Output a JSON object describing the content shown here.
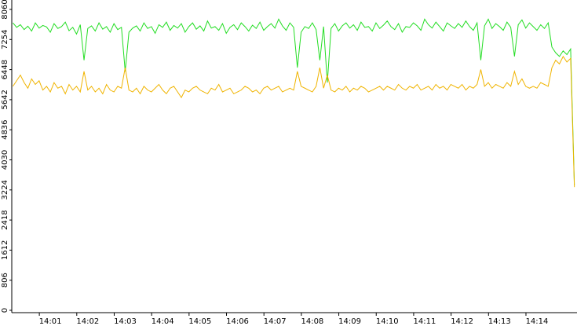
{
  "chart_data": {
    "type": "line",
    "x": [
      840.0,
      840.1,
      840.2,
      840.3,
      840.4,
      840.5,
      840.6,
      840.7,
      840.8,
      840.9,
      841.0,
      841.1,
      841.2,
      841.3,
      841.4,
      841.5,
      841.6,
      841.7,
      841.8,
      841.9,
      842.0,
      842.1,
      842.2,
      842.3,
      842.4,
      842.5,
      842.6,
      842.7,
      842.8,
      842.9,
      843.0,
      843.1,
      843.2,
      843.3,
      843.4,
      843.5,
      843.6,
      843.7,
      843.8,
      843.9,
      844.0,
      844.1,
      844.2,
      844.3,
      844.4,
      844.5,
      844.6,
      844.7,
      844.8,
      844.9,
      845.0,
      845.1,
      845.2,
      845.3,
      845.4,
      845.5,
      845.6,
      845.7,
      845.8,
      845.9,
      846.0,
      846.1,
      846.2,
      846.3,
      846.4,
      846.5,
      846.6,
      846.7,
      846.8,
      846.9,
      847.0,
      847.1,
      847.2,
      847.3,
      847.4,
      847.5,
      847.6,
      847.7,
      847.8,
      847.9,
      848.0,
      848.1,
      848.2,
      848.3,
      848.4,
      848.5,
      848.6,
      848.7,
      848.8,
      848.9,
      849.0,
      849.1,
      849.2,
      849.3,
      849.4,
      849.5,
      849.6,
      849.7,
      849.8,
      849.9,
      850.0,
      850.1,
      850.2,
      850.3,
      850.4,
      850.5,
      850.6,
      850.7,
      850.8,
      850.9,
      851.0,
      851.1,
      851.2,
      851.3,
      851.4,
      851.5,
      851.6,
      851.7,
      851.8,
      851.9,
      852.0,
      852.1,
      852.2,
      852.3,
      852.4,
      852.5,
      852.6,
      852.7,
      852.8,
      852.9,
      853.0,
      853.1,
      853.2,
      853.3,
      853.4,
      853.5,
      853.6,
      853.7,
      853.8,
      853.9,
      854.0,
      854.1,
      854.2,
      854.3,
      854.4,
      854.5,
      854.6,
      854.7,
      854.8,
      854.9,
      855.0
    ],
    "series": [
      {
        "color": "#22dd22",
        "values": [
          7700,
          7580,
          7650,
          7520,
          7610,
          7480,
          7700,
          7560,
          7630,
          7590,
          7450,
          7680,
          7550,
          7600,
          7720,
          7490,
          7580,
          7400,
          7650,
          6700,
          7550,
          7620,
          7480,
          7700,
          7530,
          7600,
          7450,
          7680,
          7520,
          7580,
          6400,
          7450,
          7560,
          7620,
          7480,
          7700,
          7550,
          7600,
          7420,
          7650,
          7580,
          7720,
          7500,
          7630,
          7560,
          7680,
          7450,
          7600,
          7700,
          7530,
          7620,
          7480,
          7750,
          7560,
          7600,
          7500,
          7680,
          7420,
          7580,
          7650,
          7520,
          7700,
          7600,
          7480,
          7640,
          7550,
          7720,
          7500,
          7600,
          7680,
          7560,
          7800,
          7620,
          7500,
          7700,
          7580,
          6500,
          7450,
          7600,
          7550,
          7700,
          7520,
          6700,
          7600,
          6100,
          7550,
          7680,
          7480,
          7620,
          7700,
          7560,
          7650,
          7500,
          7720,
          7580,
          7600,
          7480,
          7700,
          7550,
          7640,
          7750,
          7600,
          7520,
          7680,
          7450,
          7600,
          7580,
          7700,
          7620,
          7500,
          7800,
          7650,
          7560,
          7720,
          7600,
          7480,
          7700,
          7620,
          7550,
          7680,
          7580,
          7750,
          7600,
          7500,
          7700,
          6700,
          7620,
          7800,
          7550,
          7680,
          7600,
          7500,
          7720,
          7580,
          6800,
          7650,
          7780,
          7560,
          7700,
          7600,
          7500,
          7650,
          7550,
          7700,
          7050,
          6900,
          6800,
          6950,
          6850,
          7000,
          3350
        ]
      },
      {
        "color": "#f0b400",
        "values": [
          6000,
          6150,
          6300,
          6100,
          5950,
          6200,
          6050,
          6150,
          5900,
          6000,
          5850,
          6100,
          5950,
          6000,
          5800,
          6050,
          5900,
          6000,
          5850,
          6400,
          5900,
          6000,
          5850,
          5950,
          5800,
          6050,
          5900,
          5850,
          6000,
          5950,
          6500,
          5900,
          5850,
          5950,
          5800,
          6000,
          5900,
          5850,
          5950,
          6050,
          5900,
          5800,
          5950,
          6000,
          5850,
          5700,
          5900,
          5850,
          5950,
          6000,
          5900,
          5850,
          5800,
          5950,
          5900,
          6050,
          5850,
          5900,
          5950,
          5800,
          5850,
          5900,
          6000,
          5950,
          5850,
          5900,
          5800,
          5950,
          6000,
          5900,
          5950,
          6000,
          5850,
          5900,
          5950,
          5900,
          6400,
          6000,
          5950,
          5900,
          5850,
          6000,
          6500,
          5950,
          6300,
          5900,
          5850,
          5950,
          5900,
          6000,
          5850,
          5950,
          5900,
          6000,
          5950,
          5850,
          5900,
          5950,
          6000,
          5900,
          6000,
          5950,
          5900,
          6050,
          5950,
          5900,
          6000,
          5950,
          6050,
          5900,
          5950,
          6000,
          5900,
          6050,
          5950,
          6000,
          5900,
          6050,
          6000,
          5950,
          6050,
          5900,
          6000,
          5950,
          6050,
          6450,
          6000,
          6100,
          5950,
          6050,
          6000,
          5950,
          6100,
          6000,
          6400,
          6050,
          6200,
          6000,
          5950,
          6000,
          5950,
          6100,
          6050,
          6000,
          6500,
          6700,
          6600,
          6800,
          6650,
          6750,
          3300
        ]
      }
    ],
    "xlim": [
      839.97,
      855.07
    ],
    "xticks": [
      {
        "value": 841,
        "label": "14:01"
      },
      {
        "value": 842,
        "label": "14:02"
      },
      {
        "value": 843,
        "label": "14:03"
      },
      {
        "value": 844,
        "label": "14:04"
      },
      {
        "value": 845,
        "label": "14:05"
      },
      {
        "value": 846,
        "label": "14:06"
      },
      {
        "value": 847,
        "label": "14:07"
      },
      {
        "value": 848,
        "label": "14:08"
      },
      {
        "value": 849,
        "label": "14:09"
      },
      {
        "value": 850,
        "label": "14:10"
      },
      {
        "value": 851,
        "label": "14:11"
      },
      {
        "value": 852,
        "label": "14:12"
      },
      {
        "value": 853,
        "label": "14:13"
      },
      {
        "value": 854,
        "label": "14:14"
      }
    ],
    "ylim": [
      0,
      8060
    ],
    "yticks": [
      0,
      806,
      1612,
      2418,
      3224,
      4030,
      4836,
      5642,
      6448,
      7254,
      8060
    ]
  }
}
